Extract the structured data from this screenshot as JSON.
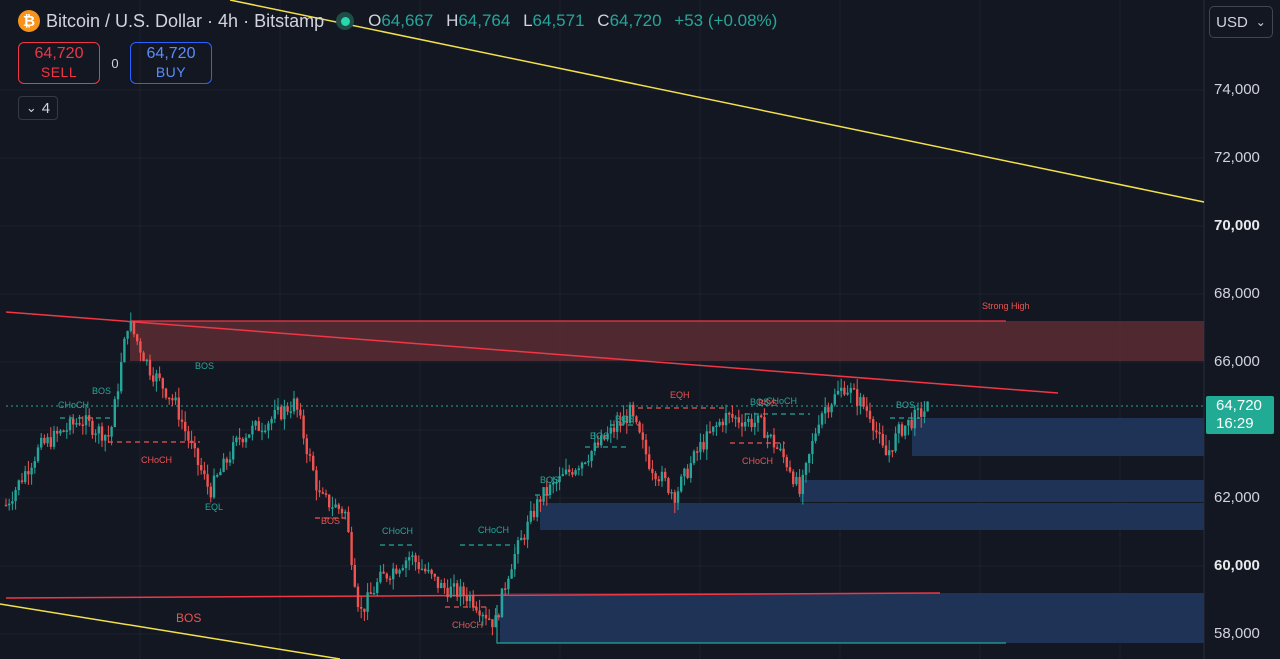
{
  "header": {
    "symbol_icon": "bitcoin-icon",
    "symbol_icon_glyph": "₿",
    "title": "Bitcoin / U.S. Dollar · 4h · Bitstamp",
    "ohlc": {
      "o_label": "O",
      "o": "64,667",
      "h_label": "H",
      "h": "64,764",
      "l_label": "L",
      "l": "64,571",
      "c_label": "C",
      "c": "64,720",
      "change": "+53 (+0.08%)"
    }
  },
  "trade": {
    "sell_price": "64,720",
    "sell_label": "SELL",
    "spread": "0",
    "buy_price": "64,720",
    "buy_label": "BUY"
  },
  "indicators_toggle": {
    "icon": "chevron-down-icon",
    "glyph": "⌄",
    "count": "4"
  },
  "currency": {
    "value": "USD",
    "icon": "chevron-down-icon",
    "glyph": "⌄"
  },
  "price_axis": {
    "labels": [
      {
        "text": "74,000",
        "value": 74000,
        "bold": false
      },
      {
        "text": "72,000",
        "value": 72000,
        "bold": false
      },
      {
        "text": "70,000",
        "value": 70000,
        "bold": true
      },
      {
        "text": "68,000",
        "value": 68000,
        "bold": false
      },
      {
        "text": "66,000",
        "value": 66000,
        "bold": false
      },
      {
        "text": "62,000",
        "value": 62000,
        "bold": false
      },
      {
        "text": "60,000",
        "value": 60000,
        "bold": true
      },
      {
        "text": "58,000",
        "value": 58000,
        "bold": false
      }
    ],
    "current_price": "64,720",
    "countdown": "16:29"
  },
  "colors": {
    "background": "#131722",
    "grid": "#1e222d",
    "up": "#26a69a",
    "down": "#ef5350",
    "trend": "#f2e14c",
    "supply": "#5c2b33",
    "demand": "#1e3356",
    "label_green": "#26a69a",
    "label_red": "#ef5350"
  },
  "annotations": [
    {
      "text": "Strong High",
      "color": "red"
    },
    {
      "text": "EQH",
      "color": "red"
    },
    {
      "text": "BOS",
      "color": "green"
    },
    {
      "text": "CHoCH",
      "color": "green"
    },
    {
      "text": "CHoCH",
      "color": "red"
    },
    {
      "text": "EQL",
      "color": "green"
    },
    {
      "text": "BOS",
      "color": "red"
    }
  ]
}
